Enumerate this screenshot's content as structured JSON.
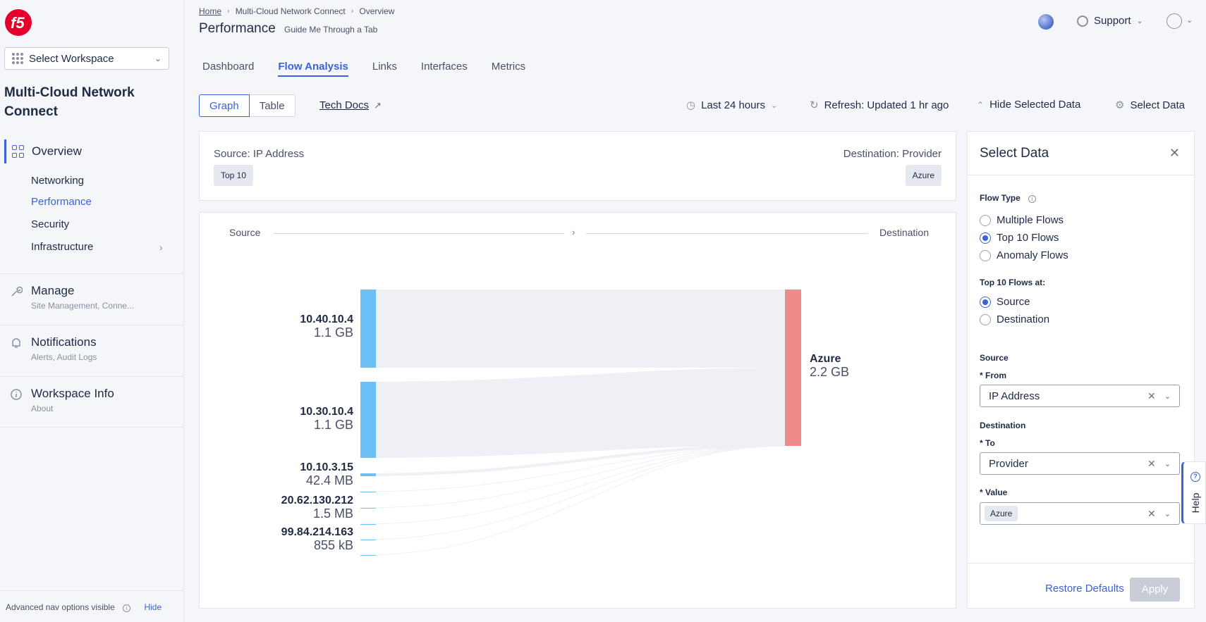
{
  "breadcrumb": {
    "home": "Home",
    "crumb2": "Multi-Cloud Network Connect",
    "crumb3": "Overview"
  },
  "header": {
    "title": "Performance",
    "subtitle": "Guide Me Through a Tab",
    "support": "Support"
  },
  "sidebar": {
    "workspace": "Select Workspace",
    "app_title": "Multi-Cloud Network Connect",
    "overview": "Overview",
    "subitems": [
      "Networking",
      "Performance",
      "Security",
      "Infrastructure"
    ],
    "sections": [
      {
        "title": "Manage",
        "sub": "Site Management, Conne...",
        "icon": "wrench-icon"
      },
      {
        "title": "Notifications",
        "sub": "Alerts, Audit Logs",
        "icon": "bell-icon"
      },
      {
        "title": "Workspace Info",
        "sub": "About",
        "icon": "info-icon"
      }
    ],
    "advanced": "Advanced nav options visible",
    "hide": "Hide"
  },
  "tabs": [
    "Dashboard",
    "Flow Analysis",
    "Links",
    "Interfaces",
    "Metrics"
  ],
  "toolbar": {
    "graph": "Graph",
    "table": "Table",
    "tech_docs": "Tech Docs",
    "time_range": "Last 24 hours",
    "refresh": "Refresh: Updated 1 hr ago",
    "hide_selected": "Hide Selected Data",
    "select_data": "Select Data"
  },
  "filter": {
    "source_label": "Source: IP Address",
    "source_chip": "Top 10",
    "dest_label": "Destination: Provider",
    "dest_chip": "Azure"
  },
  "graph": {
    "source_header": "Source",
    "dest_header": "Destination",
    "sources": [
      {
        "ip": "10.40.10.4",
        "size": "1.1 GB"
      },
      {
        "ip": "10.30.10.4",
        "size": "1.1 GB"
      },
      {
        "ip": "10.10.3.15",
        "size": "42.4 MB"
      },
      {
        "ip": "20.62.130.212",
        "size": "1.5 MB"
      },
      {
        "ip": "99.84.214.163",
        "size": "855 kB"
      }
    ],
    "destination": {
      "name": "Azure",
      "size": "2.2 GB"
    },
    "colors": {
      "source": "#6cc0f5",
      "dest": "#f08b8b",
      "link": "#eef0f6"
    }
  },
  "panel": {
    "title": "Select Data",
    "flow_type_label": "Flow Type",
    "flow_types": [
      "Multiple Flows",
      "Top 10 Flows",
      "Anomaly Flows"
    ],
    "flow_type_selected": "Top 10 Flows",
    "top10_at_label": "Top 10 Flows at:",
    "top10_at": [
      "Source",
      "Destination"
    ],
    "top10_at_selected": "Source",
    "source_section": "Source",
    "from_label": "* From",
    "from_value": "IP Address",
    "dest_section": "Destination",
    "to_label": "* To",
    "to_value": "Provider",
    "value_label": "* Value",
    "value_chip": "Azure",
    "restore": "Restore Defaults",
    "apply": "Apply"
  },
  "help": "Help"
}
